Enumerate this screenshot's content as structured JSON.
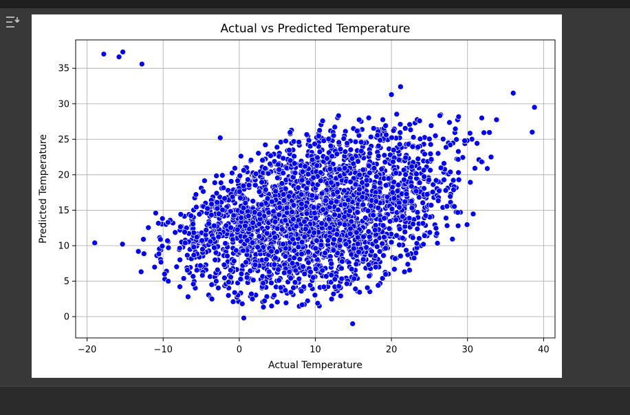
{
  "ui": {
    "collapse_icon": "collapse-output-icon"
  },
  "chart_data": {
    "type": "scatter",
    "title": "Actual vs Predicted Temperature",
    "xlabel": "Actual Temperature",
    "ylabel": "Predicted Temperature",
    "xlim": [
      -21.5,
      41.5
    ],
    "ylim": [
      -3,
      39
    ],
    "xticks": [
      -20,
      -10,
      0,
      10,
      20,
      30,
      40
    ],
    "xtick_labels": [
      "−20",
      "−10",
      "0",
      "10",
      "20",
      "30",
      "40"
    ],
    "yticks": [
      0,
      5,
      10,
      15,
      20,
      25,
      30,
      35
    ],
    "ytick_labels": [
      "0",
      "5",
      "10",
      "15",
      "20",
      "25",
      "30",
      "35"
    ],
    "grid": true,
    "marker_color": "#0000ff",
    "marker_edge": "#ffffff",
    "outliers": [
      {
        "x": -17.8,
        "y": 37.0
      },
      {
        "x": -15.3,
        "y": 37.3
      },
      {
        "x": -15.8,
        "y": 36.6
      },
      {
        "x": -12.8,
        "y": 35.6
      },
      {
        "x": 14.9,
        "y": -1.0
      },
      {
        "x": 0.6,
        "y": -0.2
      },
      {
        "x": 20.0,
        "y": 31.3
      },
      {
        "x": 21.2,
        "y": 32.4
      },
      {
        "x": -19.0,
        "y": 10.4
      },
      {
        "x": -2.5,
        "y": 25.2
      },
      {
        "x": 36.0,
        "y": 31.5
      },
      {
        "x": 38.5,
        "y": 26.0
      },
      {
        "x": 38.8,
        "y": 29.5
      }
    ],
    "main_cloud": {
      "x_range": [
        -19,
        39
      ],
      "y_lower_at_x": [
        [
          -19,
          7.0
        ],
        [
          -15,
          5.5
        ],
        [
          -10,
          3.5
        ],
        [
          -5,
          2.0
        ],
        [
          0,
          0.8
        ],
        [
          5,
          0.5
        ],
        [
          10,
          0.8
        ],
        [
          15,
          2.0
        ],
        [
          20,
          3.5
        ],
        [
          25,
          7.0
        ],
        [
          30,
          12.0
        ],
        [
          35,
          17.0
        ],
        [
          39,
          22.0
        ]
      ],
      "y_upper_at_x": [
        [
          -19,
          11.5
        ],
        [
          -15,
          12.5
        ],
        [
          -10,
          16.0
        ],
        [
          -5,
          20.0
        ],
        [
          0,
          23.0
        ],
        [
          5,
          25.5
        ],
        [
          10,
          28.0
        ],
        [
          15,
          29.0
        ],
        [
          20,
          30.0
        ],
        [
          25,
          29.5
        ],
        [
          30,
          30.0
        ],
        [
          35,
          31.0
        ],
        [
          39,
          30.0
        ]
      ]
    }
  }
}
